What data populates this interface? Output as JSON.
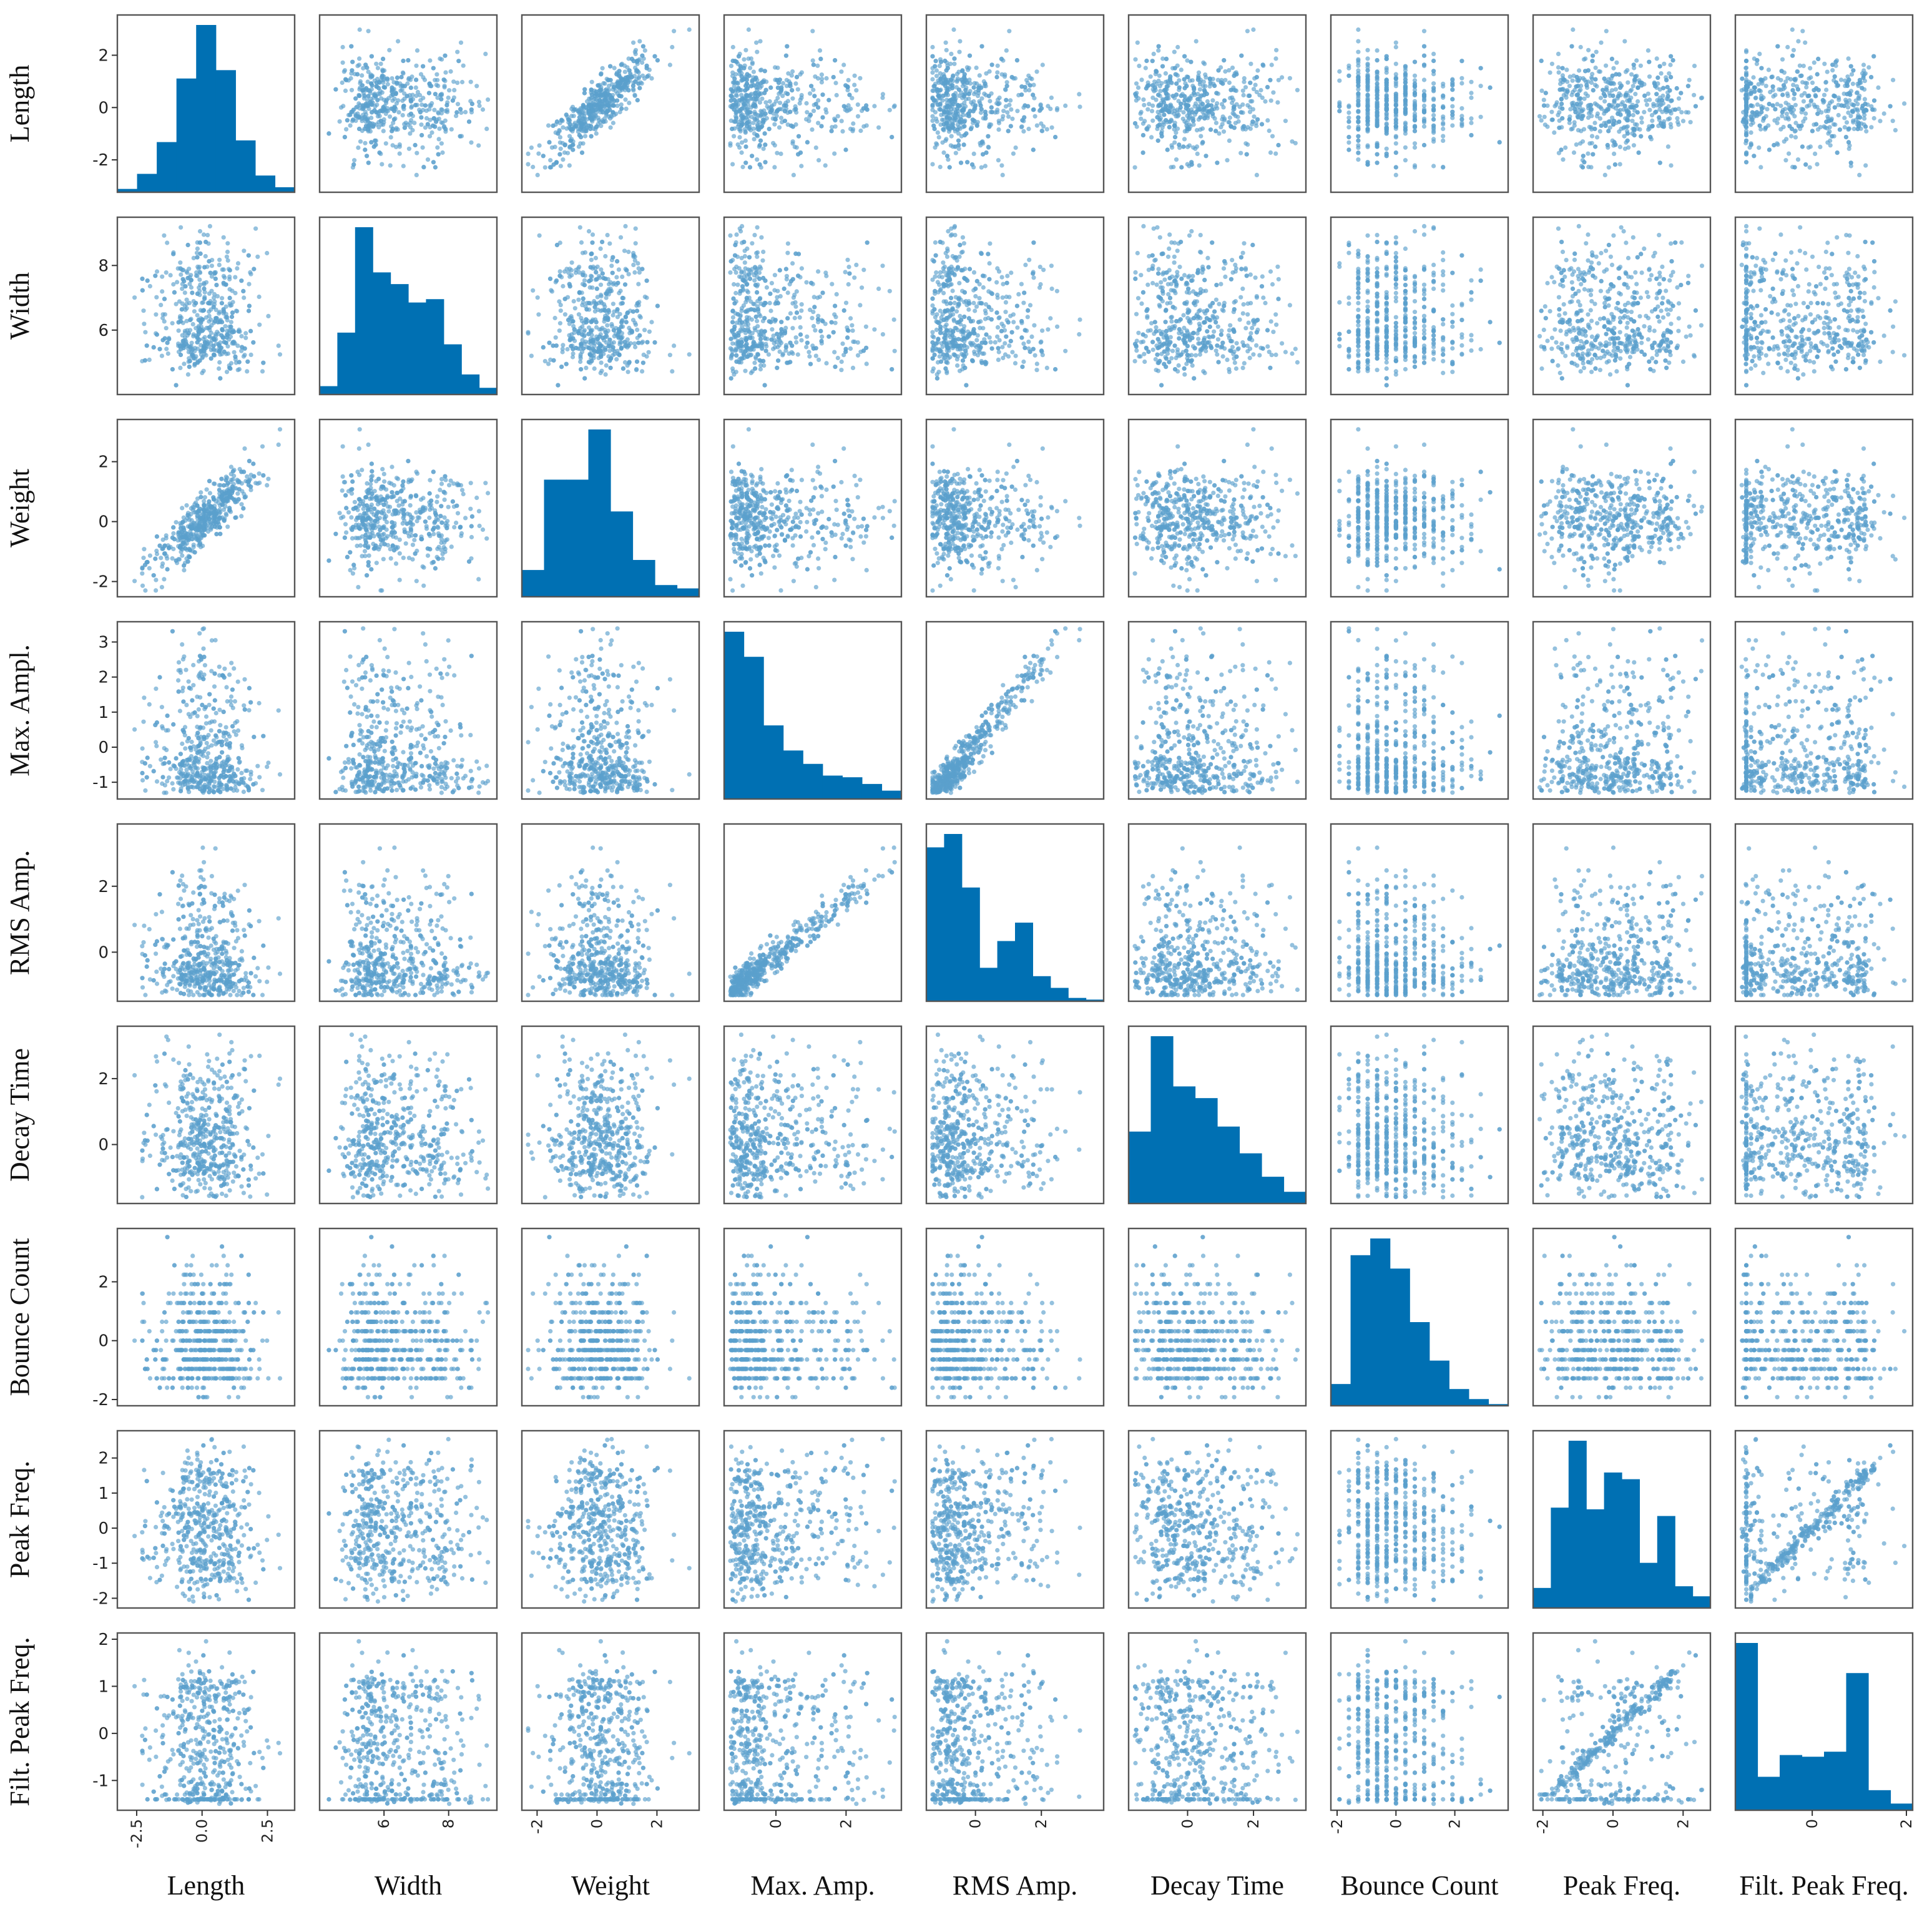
{
  "chart_data": {
    "type": "scatter_matrix",
    "variables": [
      {
        "name": "Length",
        "row_label": "Length",
        "col_label": "Length",
        "range": [
          -3.0,
          3.3
        ],
        "yticks": [
          -2,
          0,
          2
        ],
        "yticklabels": [
          "-2",
          "0",
          "2"
        ],
        "xticks": [
          -2.5,
          0,
          2.5
        ],
        "xticklabels": [
          "-2.5",
          "0.0",
          "2.5"
        ],
        "hist": [
          0.02,
          0.11,
          0.3,
          0.68,
          1.0,
          0.73,
          0.31,
          0.1,
          0.03
        ],
        "discrete": false
      },
      {
        "name": "Width",
        "row_label": "Width",
        "col_label": "Width",
        "range": [
          4.2,
          9.3
        ],
        "yticks": [
          6,
          8
        ],
        "yticklabels": [
          "6",
          "8"
        ],
        "xticks": [
          6,
          8
        ],
        "xticklabels": [
          "6",
          "8"
        ],
        "hist": [
          0.05,
          0.37,
          1.0,
          0.73,
          0.66,
          0.55,
          0.57,
          0.3,
          0.12,
          0.04
        ],
        "discrete": false
      },
      {
        "name": "Weight",
        "row_label": "Weight",
        "col_label": "Weight",
        "range": [
          -2.3,
          3.2
        ],
        "yticks": [
          -2,
          0,
          2
        ],
        "yticklabels": [
          "-2",
          "0",
          "2"
        ],
        "xticks": [
          -2,
          0,
          2
        ],
        "xticklabels": [
          "-2",
          "0",
          "2"
        ],
        "hist": [
          0.16,
          0.7,
          0.7,
          1.0,
          0.51,
          0.22,
          0.07,
          0.05
        ],
        "discrete": false
      },
      {
        "name": "Max. Amp.",
        "row_label": "Max. Ampl.",
        "col_label": "Max. Amp.",
        "range": [
          -1.3,
          3.4
        ],
        "yticks": [
          -1,
          0,
          1,
          2,
          3
        ],
        "yticklabels": [
          "-1",
          "0",
          "1",
          "2",
          "3"
        ],
        "xticks": [
          0,
          2
        ],
        "xticklabels": [
          "0",
          "2"
        ],
        "hist": [
          1.0,
          0.85,
          0.44,
          0.29,
          0.21,
          0.14,
          0.13,
          0.09,
          0.05
        ],
        "discrete": false
      },
      {
        "name": "RMS Amp.",
        "row_label": "RMS Amp.",
        "col_label": "RMS Amp.",
        "range": [
          -1.3,
          3.7
        ],
        "yticks": [
          0,
          2
        ],
        "yticklabels": [
          "0",
          "2"
        ],
        "xticks": [
          0,
          2
        ],
        "xticklabels": [
          "0",
          "2"
        ],
        "hist": [
          0.92,
          1.0,
          0.68,
          0.2,
          0.36,
          0.47,
          0.15,
          0.08,
          0.02,
          0.01
        ],
        "discrete": false
      },
      {
        "name": "Decay Time",
        "row_label": "Decay Time",
        "col_label": "Decay Time",
        "range": [
          -1.6,
          3.4
        ],
        "yticks": [
          0,
          2
        ],
        "yticklabels": [
          "0",
          "2"
        ],
        "xticks": [
          0,
          2
        ],
        "xticklabels": [
          "0",
          "2"
        ],
        "hist": [
          0.43,
          1.0,
          0.7,
          0.63,
          0.46,
          0.3,
          0.16,
          0.07
        ],
        "discrete": false
      },
      {
        "name": "Bounce Count",
        "row_label": "Bounce Count",
        "col_label": "Bounce Count",
        "range": [
          -2.0,
          3.6
        ],
        "yticks": [
          -2,
          0,
          2
        ],
        "yticklabels": [
          "-2",
          "0",
          "2"
        ],
        "xticks": [
          -2,
          0,
          2
        ],
        "xticklabels": [
          "-2",
          "0",
          "2"
        ],
        "hist": [
          0.13,
          0.9,
          1.0,
          0.82,
          0.5,
          0.27,
          0.1,
          0.04,
          0.01
        ],
        "discrete": true
      },
      {
        "name": "Peak Freq.",
        "row_label": "Peak Freq.",
        "col_label": "Peak Freq.",
        "range": [
          -2.1,
          2.6
        ],
        "yticks": [
          -2,
          -1,
          0,
          1,
          2
        ],
        "yticklabels": [
          "-2",
          "-1",
          "0",
          "1",
          "2"
        ],
        "xticks": [
          -2,
          0,
          2
        ],
        "xticklabels": [
          "-2",
          "0",
          "2"
        ],
        "hist": [
          0.12,
          0.6,
          1.0,
          0.59,
          0.81,
          0.77,
          0.27,
          0.55,
          0.13,
          0.07
        ],
        "discrete": false
      },
      {
        "name": "Filt. Peak Freq.",
        "row_label": "Filt. Peak Freq.",
        "col_label": "Filt. Peak Freq.",
        "range": [
          -1.5,
          2.0
        ],
        "yticks": [
          -1,
          0,
          1,
          2
        ],
        "yticklabels": [
          "-1",
          "0",
          "1",
          "2"
        ],
        "xticks": [
          0,
          2
        ],
        "xticklabels": [
          "0",
          "2"
        ],
        "hist": [
          1.0,
          0.2,
          0.33,
          0.32,
          0.35,
          0.82,
          0.12,
          0.04
        ],
        "discrete": false
      }
    ],
    "diagonal": "histogram",
    "off_diagonal": "scatter",
    "point_color": "#5aa0cc",
    "hist_color": "#0070b3",
    "n_points_per_panel": 600,
    "grid": false
  }
}
